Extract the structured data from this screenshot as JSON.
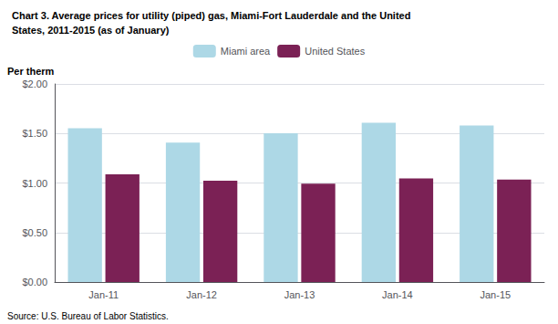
{
  "chart_data": {
    "type": "bar",
    "title": "Chart 3. Average prices for utility (piped) gas, Miami-Fort Lauderdale and the United\nStates, 2011-2015 (as of January)",
    "ylabel": "Per therm",
    "annotations": [
      "Source: U.S. Bureau of Labor Statistics."
    ],
    "categories": [
      "Jan-11",
      "Jan-12",
      "Jan-13",
      "Jan-14",
      "Jan-15"
    ],
    "series": [
      {
        "name": "Miami area",
        "color": "#add8e6",
        "values": [
          1.554,
          1.408,
          1.503,
          1.609,
          1.581
        ]
      },
      {
        "name": "United States",
        "color": "#7b2155",
        "values": [
          1.087,
          1.022,
          0.993,
          1.046,
          1.035
        ]
      }
    ],
    "ylim": [
      0.0,
      2.0
    ],
    "yticks": [
      {
        "value": 0.0,
        "label": "$0.00"
      },
      {
        "value": 0.5,
        "label": "$0.50"
      },
      {
        "value": 1.0,
        "label": "$1.00"
      },
      {
        "value": 1.5,
        "label": "$1.50"
      },
      {
        "value": 2.0,
        "label": "$2.00"
      }
    ],
    "grid": true,
    "legend": "top"
  }
}
